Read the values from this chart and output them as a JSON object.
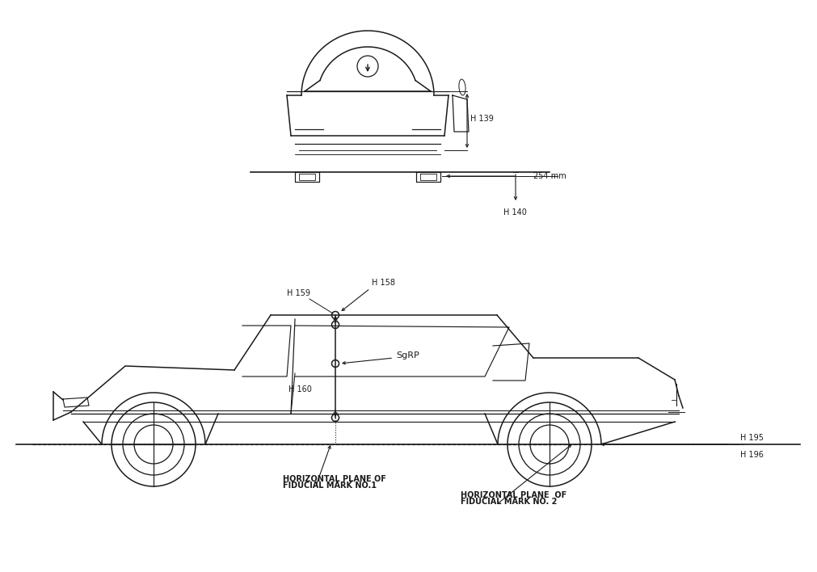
{
  "line_color": "#1a1a1a",
  "annotations": {
    "H139": "H 139",
    "H140": "H 140",
    "254mm": "254 mm",
    "H158": "H 158",
    "H159": "H 159",
    "H160": "H 160",
    "H195": "H 195",
    "H196": "H 196",
    "SgRP": "SgRP",
    "horiz1_line1": "HORIZONTAL PLANE OF",
    "horiz1_line2": "FIDUCIAL MARK NO.1",
    "horiz2_line1": "HORIZONTAL PLANE  OF",
    "horiz2_line2": "FIDUCIAL MARK NO. 2"
  },
  "font_size_labels": 7.0
}
